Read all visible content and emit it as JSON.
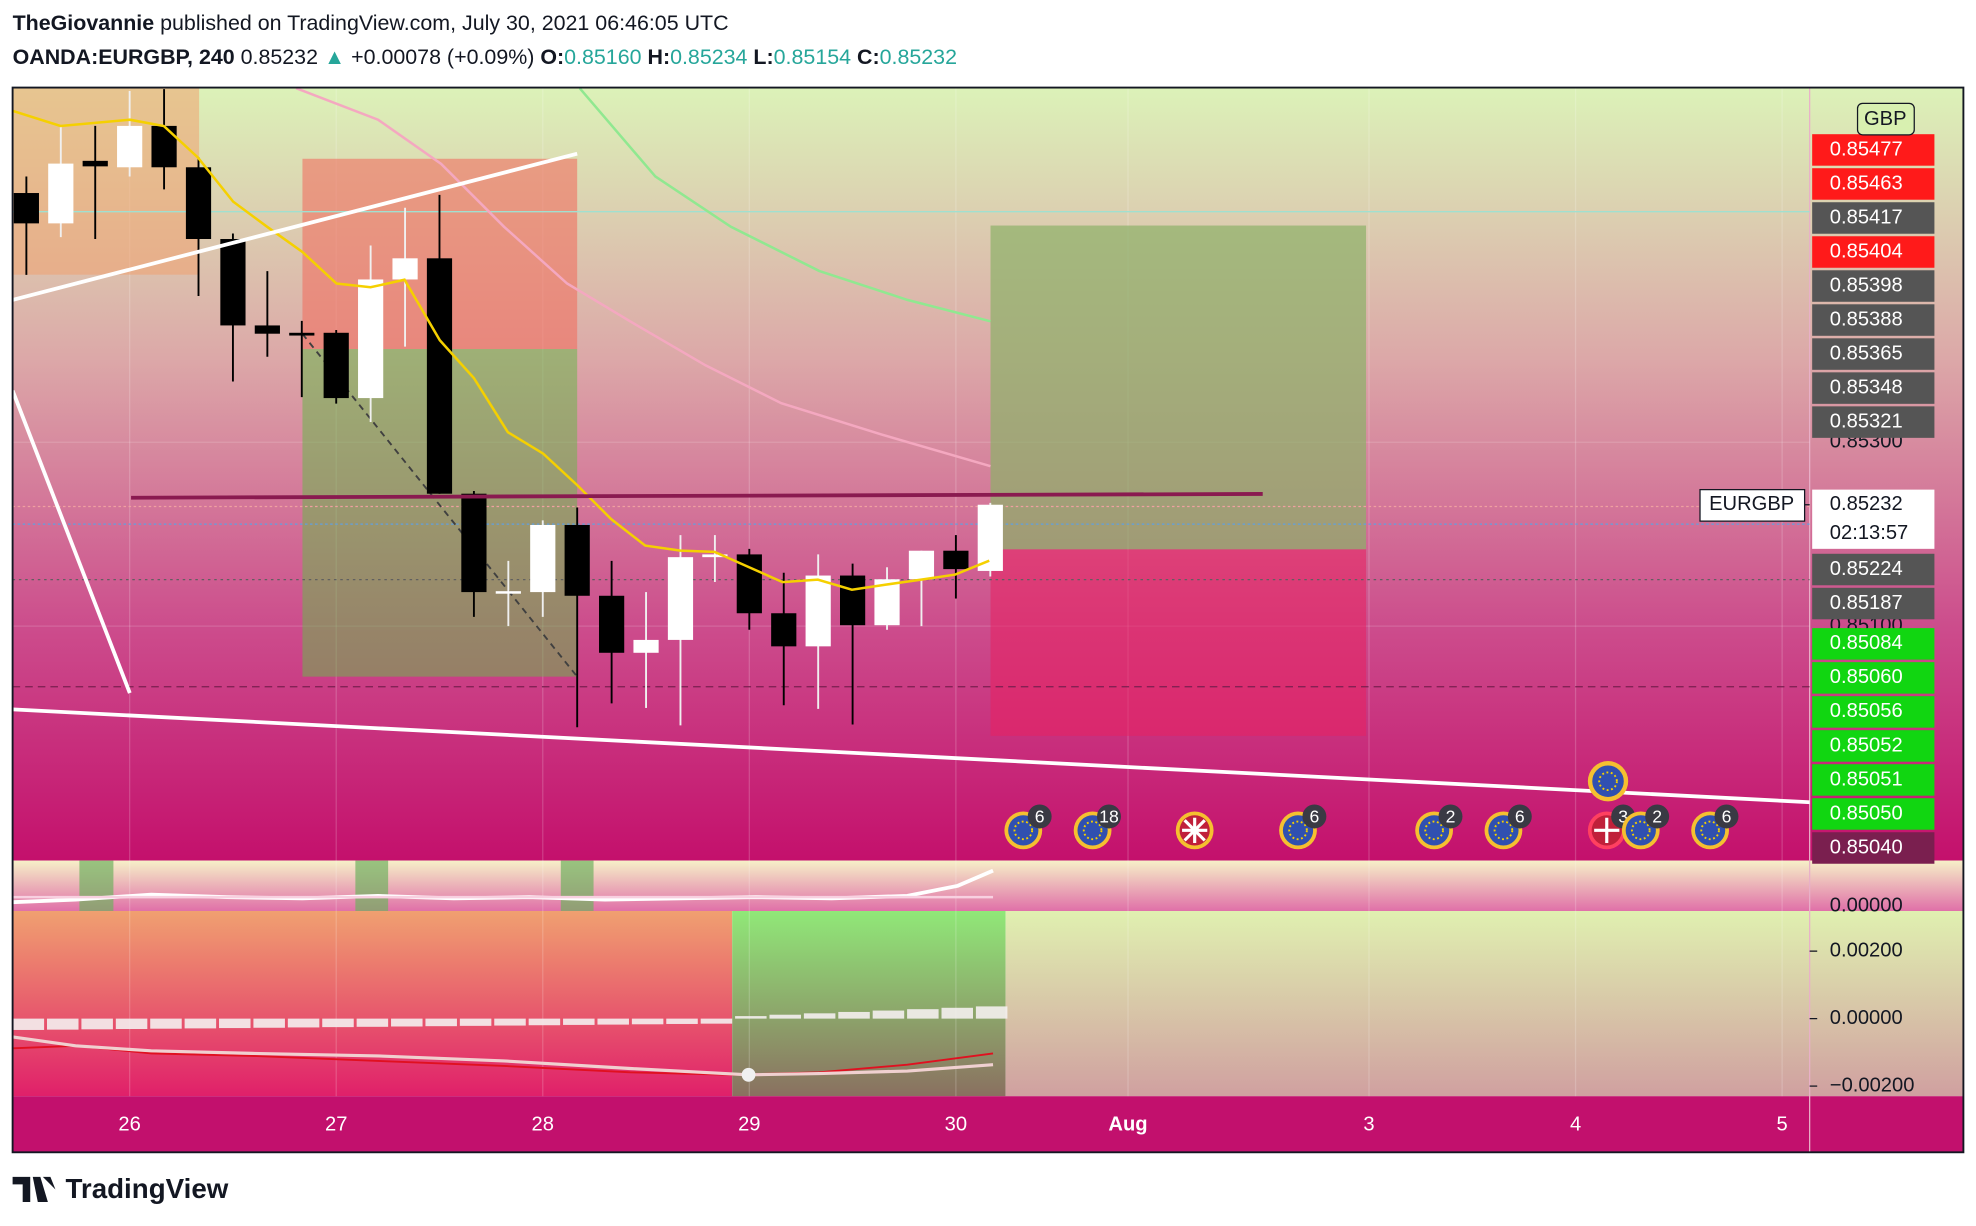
{
  "header": {
    "author": "TheGiovannie",
    "published": "published on TradingView.com, July 30, 2021 06:46:05 UTC",
    "symbol": "OANDA:EURGBP, 240",
    "price": "0.85232",
    "change": "+0.00078 (+0.09%)",
    "open_label": "O:",
    "open": "0.85160",
    "high_label": "H:",
    "high": "0.85234",
    "low_label": "L:",
    "low": "0.85154",
    "close_label": "C:",
    "close": "0.85232"
  },
  "footer": {
    "brand": "TradingView"
  },
  "chart_data": {
    "type": "candlestick",
    "open": [
      0.85571,
      0.85538,
      0.85606,
      0.85599,
      0.85644,
      0.85599,
      0.85521,
      0.85427,
      0.85419,
      0.85419,
      0.85348,
      0.85477,
      0.855,
      0.85244,
      0.85137,
      0.85137,
      0.8521,
      0.85133,
      0.85071,
      0.85085,
      0.85175,
      0.85178,
      0.85114,
      0.85078,
      0.85155,
      0.85101,
      0.85151,
      0.85182,
      0.8516
    ],
    "high": [
      0.85589,
      0.85644,
      0.85644,
      0.85682,
      0.85684,
      0.8561,
      0.85527,
      0.85486,
      0.85432,
      0.85422,
      0.85514,
      0.85555,
      0.85569,
      0.85247,
      0.85171,
      0.85215,
      0.85229,
      0.85171,
      0.85137,
      0.85199,
      0.85199,
      0.85184,
      0.85158,
      0.85178,
      0.85168,
      0.85164,
      0.85182,
      0.85199,
      0.85234
    ],
    "low": [
      0.85482,
      0.85523,
      0.85521,
      0.85589,
      0.85575,
      0.85459,
      0.85366,
      0.85393,
      0.85349,
      0.85342,
      0.85322,
      0.85404,
      0.85244,
      0.8511,
      0.851,
      0.8511,
      0.8499,
      0.85016,
      0.85011,
      0.84992,
      0.85148,
      0.85096,
      0.85014,
      0.8501,
      0.84993,
      0.85096,
      0.851,
      0.8513,
      0.85154
    ],
    "close": [
      0.85538,
      0.85603,
      0.856,
      0.85644,
      0.85599,
      0.85521,
      0.85427,
      0.85418,
      0.85416,
      0.85348,
      0.85477,
      0.855,
      0.85244,
      0.85137,
      0.85138,
      0.8521,
      0.85133,
      0.85071,
      0.85085,
      0.85175,
      0.85178,
      0.85114,
      0.85078,
      0.85155,
      0.85101,
      0.85151,
      0.85182,
      0.85162,
      0.85232
    ],
    "up_color": "#ffffff",
    "down_color": "#000000",
    "xlim": [
      -0.4,
      51.8
    ],
    "xticks": [
      {
        "value": 3,
        "label": "26"
      },
      {
        "value": 9,
        "label": "27"
      },
      {
        "value": 15,
        "label": "28"
      },
      {
        "value": 21,
        "label": "29"
      },
      {
        "value": 27,
        "label": "30"
      },
      {
        "value": 32,
        "label": "Aug"
      },
      {
        "value": 39,
        "label": "3"
      },
      {
        "value": 45,
        "label": "4"
      },
      {
        "value": 51,
        "label": "5"
      }
    ],
    "ylim": [
      0.84845,
      0.85685
    ],
    "yticks": [
      {
        "value": 0.851,
        "label": "0.85100"
      },
      {
        "value": 0.853,
        "label": "0.85300"
      }
    ],
    "price_labels": [
      {
        "label": "0.85477",
        "color": "#ff1a1a"
      },
      {
        "label": "0.85463",
        "color": "#ff1a1a"
      },
      {
        "label": "0.85417",
        "color": "#555555"
      },
      {
        "label": "0.85404",
        "color": "#ff1a1a"
      },
      {
        "label": "0.85398",
        "color": "#555555"
      },
      {
        "label": "0.85388",
        "color": "#555555"
      },
      {
        "label": "0.85365",
        "color": "#555555"
      },
      {
        "label": "0.85348",
        "color": "#555555"
      },
      {
        "label": "0.85321",
        "color": "#555555"
      },
      {
        "label": "0.85224",
        "color": "#555555"
      },
      {
        "label": "0.85187",
        "color": "#555555"
      },
      {
        "label": "0.85084",
        "color": "#11d611"
      },
      {
        "label": "0.85060",
        "color": "#11d611"
      },
      {
        "label": "0.85056",
        "color": "#11d611"
      },
      {
        "label": "0.85052",
        "color": "#11d611"
      },
      {
        "label": "0.85051",
        "color": "#11d611"
      },
      {
        "label": "0.85050",
        "color": "#11d611"
      },
      {
        "label": "0.85040",
        "color": "#7a1f4f"
      }
    ],
    "symbol_label": "EURGBP",
    "last_price": 0.85232,
    "last_label": "0.85232",
    "countdown": "02:13:57",
    "currency": "GBP",
    "event_counts": [
      6,
      18,
      6,
      2,
      6,
      3,
      2,
      6
    ],
    "pane2_tick": "0.00000",
    "osc_ylim": [
      -0.0023,
      0.00319
    ],
    "osc_yticks": [
      {
        "value": 0.002,
        "label": "0.00200"
      },
      {
        "value": 0,
        "label": "0.00000"
      },
      {
        "value": -0.002,
        "label": "−0.00200"
      }
    ]
  }
}
